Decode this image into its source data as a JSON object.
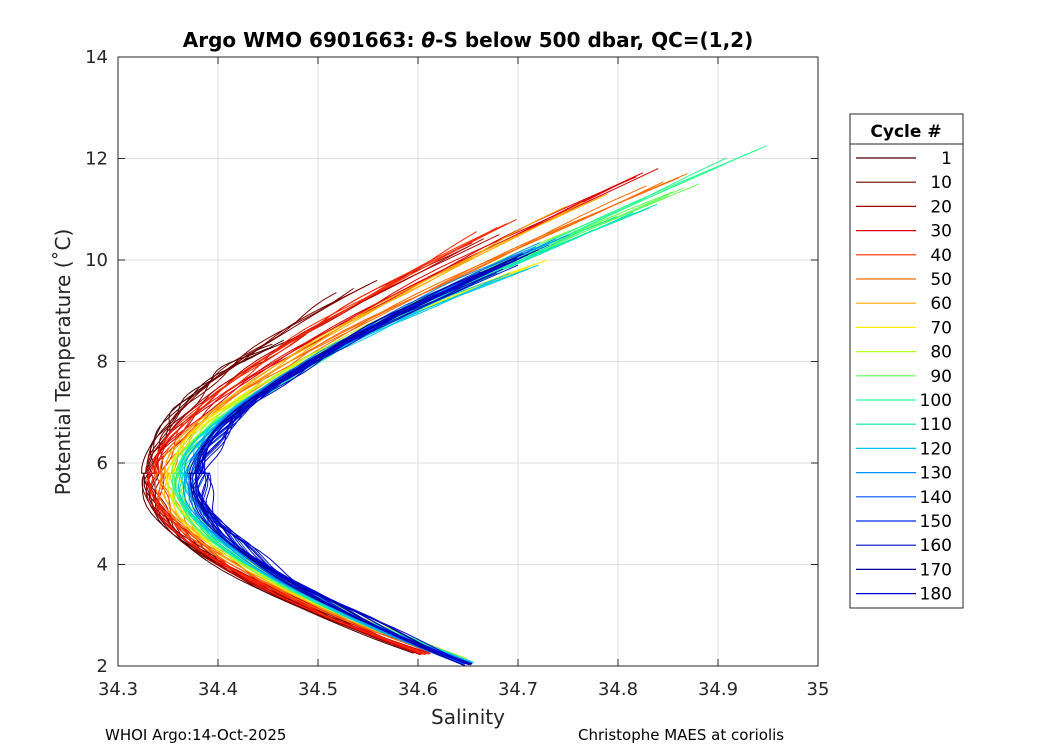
{
  "chart_data": {
    "type": "line",
    "title_prefix": "Argo WMO 6901663: ",
    "title_theta": "θ",
    "title_suffix": "-S below 500 dbar,  QC=(1,2)",
    "xlabel": "Salinity",
    "ylabel": "Potential Temperature (˚C)",
    "xlim": [
      34.3,
      35
    ],
    "ylim": [
      2,
      14
    ],
    "xticks": [
      "34.3",
      "34.4",
      "34.5",
      "34.6",
      "34.7",
      "34.8",
      "34.9",
      "35"
    ],
    "yticks": [
      "2",
      "4",
      "6",
      "8",
      "10",
      "12",
      "14"
    ],
    "grid": true,
    "legend_title": "Cycle #",
    "legend_position": "right-outside",
    "series": [
      {
        "name": "1",
        "color": "#4a0000",
        "min_s": 34.33,
        "low_s": 34.6,
        "low_t": 2.25,
        "top_s": 34.48,
        "top_t": 8.5
      },
      {
        "name": "10",
        "color": "#7a0000",
        "min_s": 34.332,
        "low_s": 34.604,
        "low_t": 2.25,
        "top_s": 34.56,
        "top_t": 9.6
      },
      {
        "name": "20",
        "color": "#ad0000",
        "min_s": 34.334,
        "low_s": 34.607,
        "low_t": 2.22,
        "top_s": 34.68,
        "top_t": 10.5
      },
      {
        "name": "30",
        "color": "#e00000",
        "min_s": 34.336,
        "low_s": 34.608,
        "low_t": 2.23,
        "top_s": 34.84,
        "top_t": 11.8
      },
      {
        "name": "40",
        "color": "#ff2a00",
        "min_s": 34.338,
        "low_s": 34.61,
        "low_t": 2.22,
        "top_s": 34.7,
        "top_t": 10.8
      },
      {
        "name": "50",
        "color": "#ff6a00",
        "min_s": 34.345,
        "low_s": 34.625,
        "low_t": 2.2,
        "top_s": 34.87,
        "top_t": 11.7
      },
      {
        "name": "60",
        "color": "#ffaa00",
        "min_s": 34.35,
        "low_s": 34.632,
        "low_t": 2.18,
        "top_s": 34.79,
        "top_t": 11.3
      },
      {
        "name": "70",
        "color": "#ffee00",
        "min_s": 34.355,
        "low_s": 34.637,
        "low_t": 2.15,
        "top_s": 34.73,
        "top_t": 10.0
      },
      {
        "name": "80",
        "color": "#b5ff20",
        "min_s": 34.358,
        "low_s": 34.64,
        "low_t": 2.12,
        "top_s": 34.8,
        "top_t": 10.9
      },
      {
        "name": "90",
        "color": "#66ff5a",
        "min_s": 34.36,
        "low_s": 34.642,
        "low_t": 2.1,
        "top_s": 34.88,
        "top_t": 11.5
      },
      {
        "name": "100",
        "color": "#2bff90",
        "min_s": 34.362,
        "low_s": 34.645,
        "low_t": 2.07,
        "top_s": 34.95,
        "top_t": 12.25
      },
      {
        "name": "110",
        "color": "#00e8b0",
        "min_s": 34.365,
        "low_s": 34.646,
        "low_t": 2.05,
        "top_s": 34.84,
        "top_t": 11.1
      },
      {
        "name": "120",
        "color": "#00c8f0",
        "min_s": 34.368,
        "low_s": 34.647,
        "low_t": 2.04,
        "top_s": 34.72,
        "top_t": 9.9
      },
      {
        "name": "130",
        "color": "#0090ff",
        "min_s": 34.372,
        "low_s": 34.648,
        "low_t": 2.03,
        "top_s": 34.75,
        "top_t": 10.5
      },
      {
        "name": "140",
        "color": "#0055ff",
        "min_s": 34.376,
        "low_s": 34.649,
        "low_t": 2.03,
        "top_s": 34.73,
        "top_t": 10.3
      },
      {
        "name": "150",
        "color": "#0028ee",
        "min_s": 34.38,
        "low_s": 34.65,
        "low_t": 2.02,
        "top_s": 34.71,
        "top_t": 10.1
      },
      {
        "name": "160",
        "color": "#0010c0",
        "min_s": 34.383,
        "low_s": 34.65,
        "low_t": 2.02,
        "top_s": 34.7,
        "top_t": 9.9
      },
      {
        "name": "170",
        "color": "#000095",
        "min_s": 34.378,
        "low_s": 34.65,
        "low_t": 2.02,
        "top_s": 34.72,
        "top_t": 10.2
      },
      {
        "name": "180",
        "color": "#0000cc",
        "min_s": 34.385,
        "low_s": 34.651,
        "low_t": 2.01,
        "top_s": 34.7,
        "top_t": 10.0
      }
    ],
    "min_t": 5.8
  },
  "footer": {
    "left": "WHOI Argo:14-Oct-2025",
    "right": "Christophe MAES at coriolis"
  }
}
